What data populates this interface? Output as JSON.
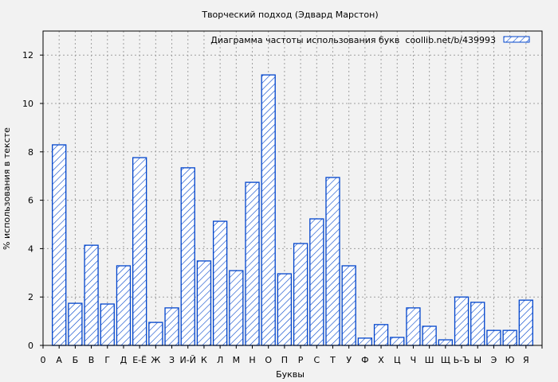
{
  "chart_data": {
    "type": "bar",
    "title": "Творческий подход (Эдвард Марстон)",
    "xlabel": "Буквы",
    "ylabel": "% использования в тексте",
    "legend": {
      "label": "Диаграмма частоты использования букв  coollib.net/b/439993",
      "position": "top-right"
    },
    "x_zero_label": "0",
    "categories": [
      "А",
      "Б",
      "В",
      "Г",
      "Д",
      "Е-Ё",
      "Ж",
      "З",
      "И-Й",
      "К",
      "Л",
      "М",
      "Н",
      "О",
      "П",
      "Р",
      "С",
      "Т",
      "У",
      "Ф",
      "Х",
      "Ц",
      "Ч",
      "Ш",
      "Щ",
      "Ь-Ъ",
      "Ы",
      "Э",
      "Ю",
      "Я"
    ],
    "values": [
      8.29,
      1.74,
      4.14,
      1.71,
      3.29,
      7.76,
      0.95,
      1.55,
      7.34,
      3.49,
      5.13,
      3.09,
      6.74,
      11.18,
      2.96,
      4.21,
      5.23,
      6.94,
      3.29,
      0.3,
      0.86,
      0.33,
      1.55,
      0.79,
      0.23,
      2.0,
      1.78,
      0.62,
      0.62,
      1.87
    ],
    "ylim": [
      0,
      13
    ],
    "yticks": [
      0,
      2,
      4,
      6,
      8,
      10,
      12
    ],
    "grid": true,
    "colors": {
      "bar": "#0044cc",
      "background": "#f2f2f2",
      "grid": "#a0a0a0"
    }
  }
}
